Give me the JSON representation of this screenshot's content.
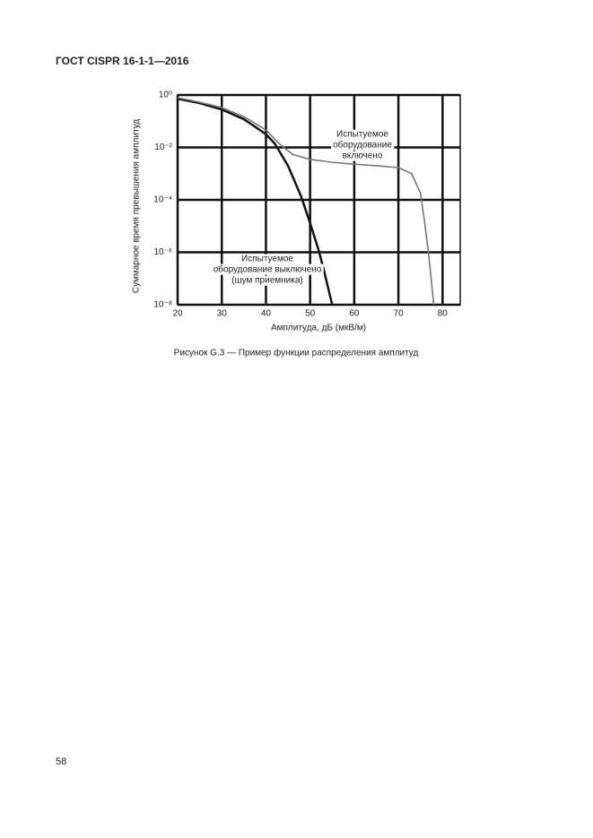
{
  "header": {
    "title": "ГОСТ CISPR 16-1-1—2016"
  },
  "figure": {
    "chart_data": {
      "type": "line",
      "x_label": "Амплитуда, дБ (мкВ/м)",
      "y_label": "Суммарное время превышения амплитуд",
      "xlim": [
        20,
        84
      ],
      "ylim": [
        1e-08,
        1
      ],
      "log_y": true,
      "grid": true,
      "xticks": [
        20,
        30,
        40,
        50,
        60,
        70,
        80
      ],
      "yticks": [
        {
          "value": 1,
          "label": "10⁰"
        },
        {
          "value": 0.01,
          "label": "10⁻²"
        },
        {
          "value": 0.0001,
          "label": "10⁻⁴"
        },
        {
          "value": 1e-06,
          "label": "10⁻⁶"
        },
        {
          "value": 1e-08,
          "label": "10⁻⁸"
        }
      ],
      "series": [
        {
          "color": "#111111",
          "x": [
            20,
            25,
            30,
            35,
            40,
            42,
            45,
            48,
            50,
            52,
            53,
            54,
            55
          ],
          "values": [
            0.72,
            0.49,
            0.28,
            0.12,
            0.032,
            0.014,
            0.002,
            0.00013,
            1.3e-05,
            1.1e-06,
            2.5e-07,
            5e-08,
            1e-08
          ]
        },
        {
          "color": "#777777",
          "x": [
            20,
            25,
            30,
            35,
            40,
            43,
            46,
            50,
            55,
            60,
            65,
            70,
            73,
            75,
            76,
            77,
            78
          ],
          "values": [
            0.79,
            0.53,
            0.33,
            0.15,
            0.046,
            0.014,
            0.0055,
            0.0035,
            0.0027,
            0.0023,
            0.002,
            0.0017,
            0.001,
            0.00018,
            1.2e-05,
            5e-07,
            1e-08
          ]
        }
      ],
      "annotations": [
        {
          "lines": [
            "Испытуемое",
            "оборудование",
            "включено"
          ]
        },
        {
          "lines": [
            "Испытуемое",
            "оборудование выключено",
            "(шум приемника)"
          ]
        }
      ]
    },
    "caption": "Рисунок G.3 — Пример функции распределения амплитуд"
  },
  "footer": {
    "page_number": "58"
  }
}
